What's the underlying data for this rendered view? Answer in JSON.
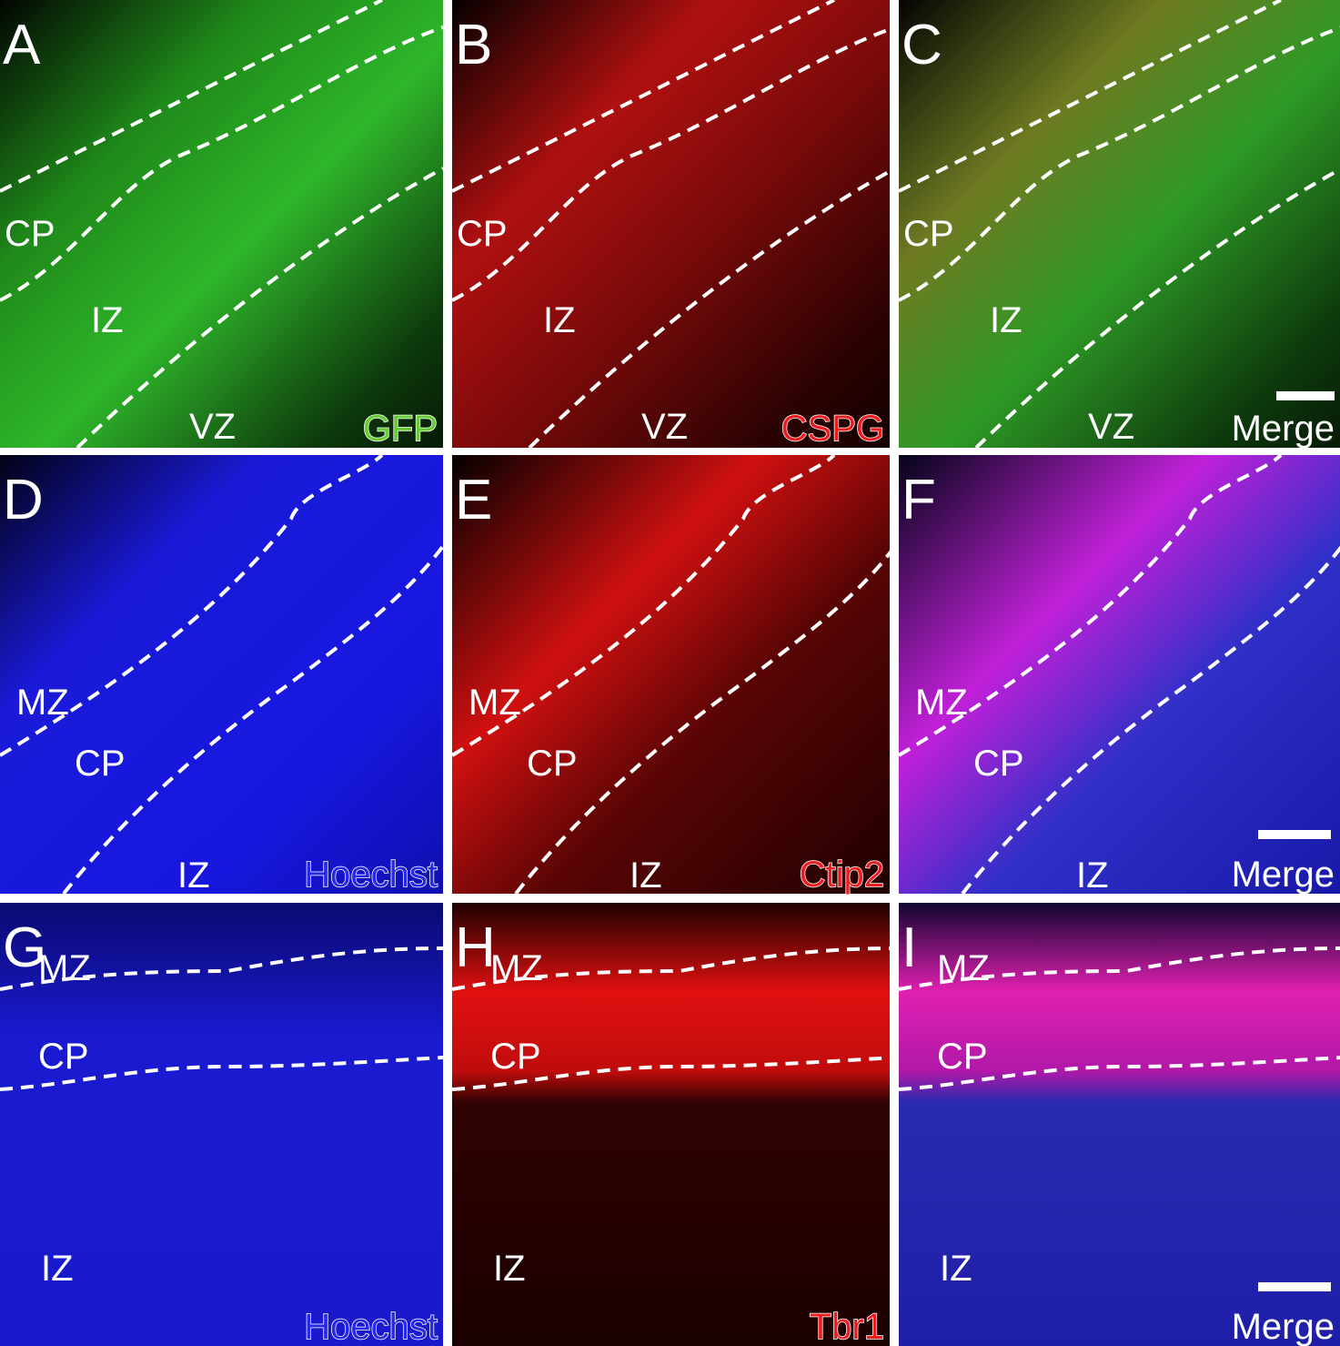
{
  "panels": [
    {
      "letter": "A",
      "regions": [
        "CP",
        "IZ",
        "VZ"
      ],
      "stain": "GFP"
    },
    {
      "letter": "B",
      "regions": [
        "CP",
        "IZ",
        "VZ"
      ],
      "stain": "CSPG"
    },
    {
      "letter": "C",
      "regions": [
        "CP",
        "IZ",
        "VZ"
      ],
      "stain": "Merge"
    },
    {
      "letter": "D",
      "regions": [
        "MZ",
        "CP",
        "IZ"
      ],
      "stain": "Hoechst"
    },
    {
      "letter": "E",
      "regions": [
        "MZ",
        "CP",
        "IZ"
      ],
      "stain": "Ctip2"
    },
    {
      "letter": "F",
      "regions": [
        "MZ",
        "CP",
        "IZ"
      ],
      "stain": "Merge"
    },
    {
      "letter": "G",
      "regions": [
        "MZ",
        "CP",
        "IZ"
      ],
      "stain": "Hoechst"
    },
    {
      "letter": "H",
      "regions": [
        "MZ",
        "CP",
        "IZ"
      ],
      "stain": "Tbr1"
    },
    {
      "letter": "I",
      "regions": [
        "MZ",
        "CP",
        "IZ"
      ],
      "stain": "Merge"
    }
  ]
}
